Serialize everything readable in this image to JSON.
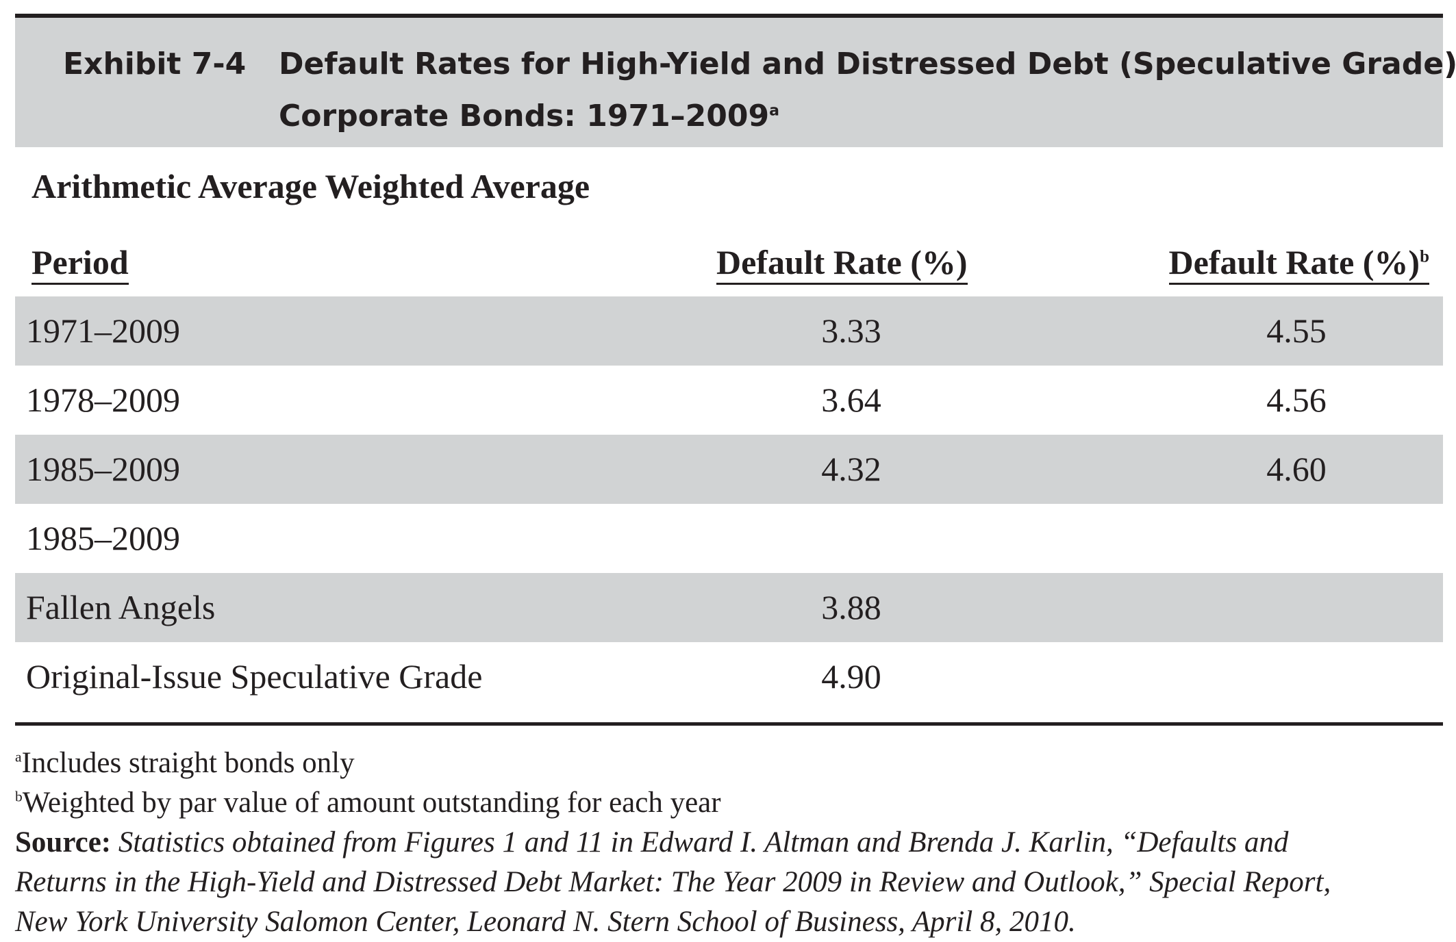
{
  "exhibit": {
    "label": "Exhibit 7-4",
    "title_line1": "Default Rates for High-Yield and Distressed Debt (Speculative Grade)",
    "title_line2": "Corporate Bonds: 1971–2009",
    "title_footnote_mark": "a"
  },
  "table": {
    "group_header": "Arithmetic Average Weighted Average",
    "columns": {
      "period": "Period",
      "arithmetic": "Default Rate (%)",
      "weighted": "Default Rate (%)",
      "weighted_footnote_mark": "b"
    },
    "rows": [
      {
        "period": "1971–2009",
        "arithmetic": "3.33",
        "weighted": "4.55"
      },
      {
        "period": "1978–2009",
        "arithmetic": "3.64",
        "weighted": "4.56"
      },
      {
        "period": "1985–2009",
        "arithmetic": "4.32",
        "weighted": "4.60"
      },
      {
        "period": "1985–2009",
        "arithmetic": "",
        "weighted": ""
      },
      {
        "period": "Fallen Angels",
        "arithmetic": "3.88",
        "weighted": ""
      },
      {
        "period": "Original-Issue Speculative Grade",
        "arithmetic": "4.90",
        "weighted": ""
      }
    ]
  },
  "notes": {
    "note_a_mark": "a",
    "note_a": "Includes straight bonds only",
    "note_b_mark": "b",
    "note_b": "Weighted by par value of amount outstanding for each year",
    "source_label": "Source:",
    "source_line1": "Statistics obtained from Figures 1 and 11 in Edward I. Altman and Brenda J. Karlin, “Defaults and",
    "source_line2": "Returns in the High-Yield and Distressed Debt Market: The Year 2009 in Review and Outlook,” Special Report,",
    "source_line3": "New York University Salomon Center, Leonard N. Stern School of Business, April 8, 2010."
  }
}
